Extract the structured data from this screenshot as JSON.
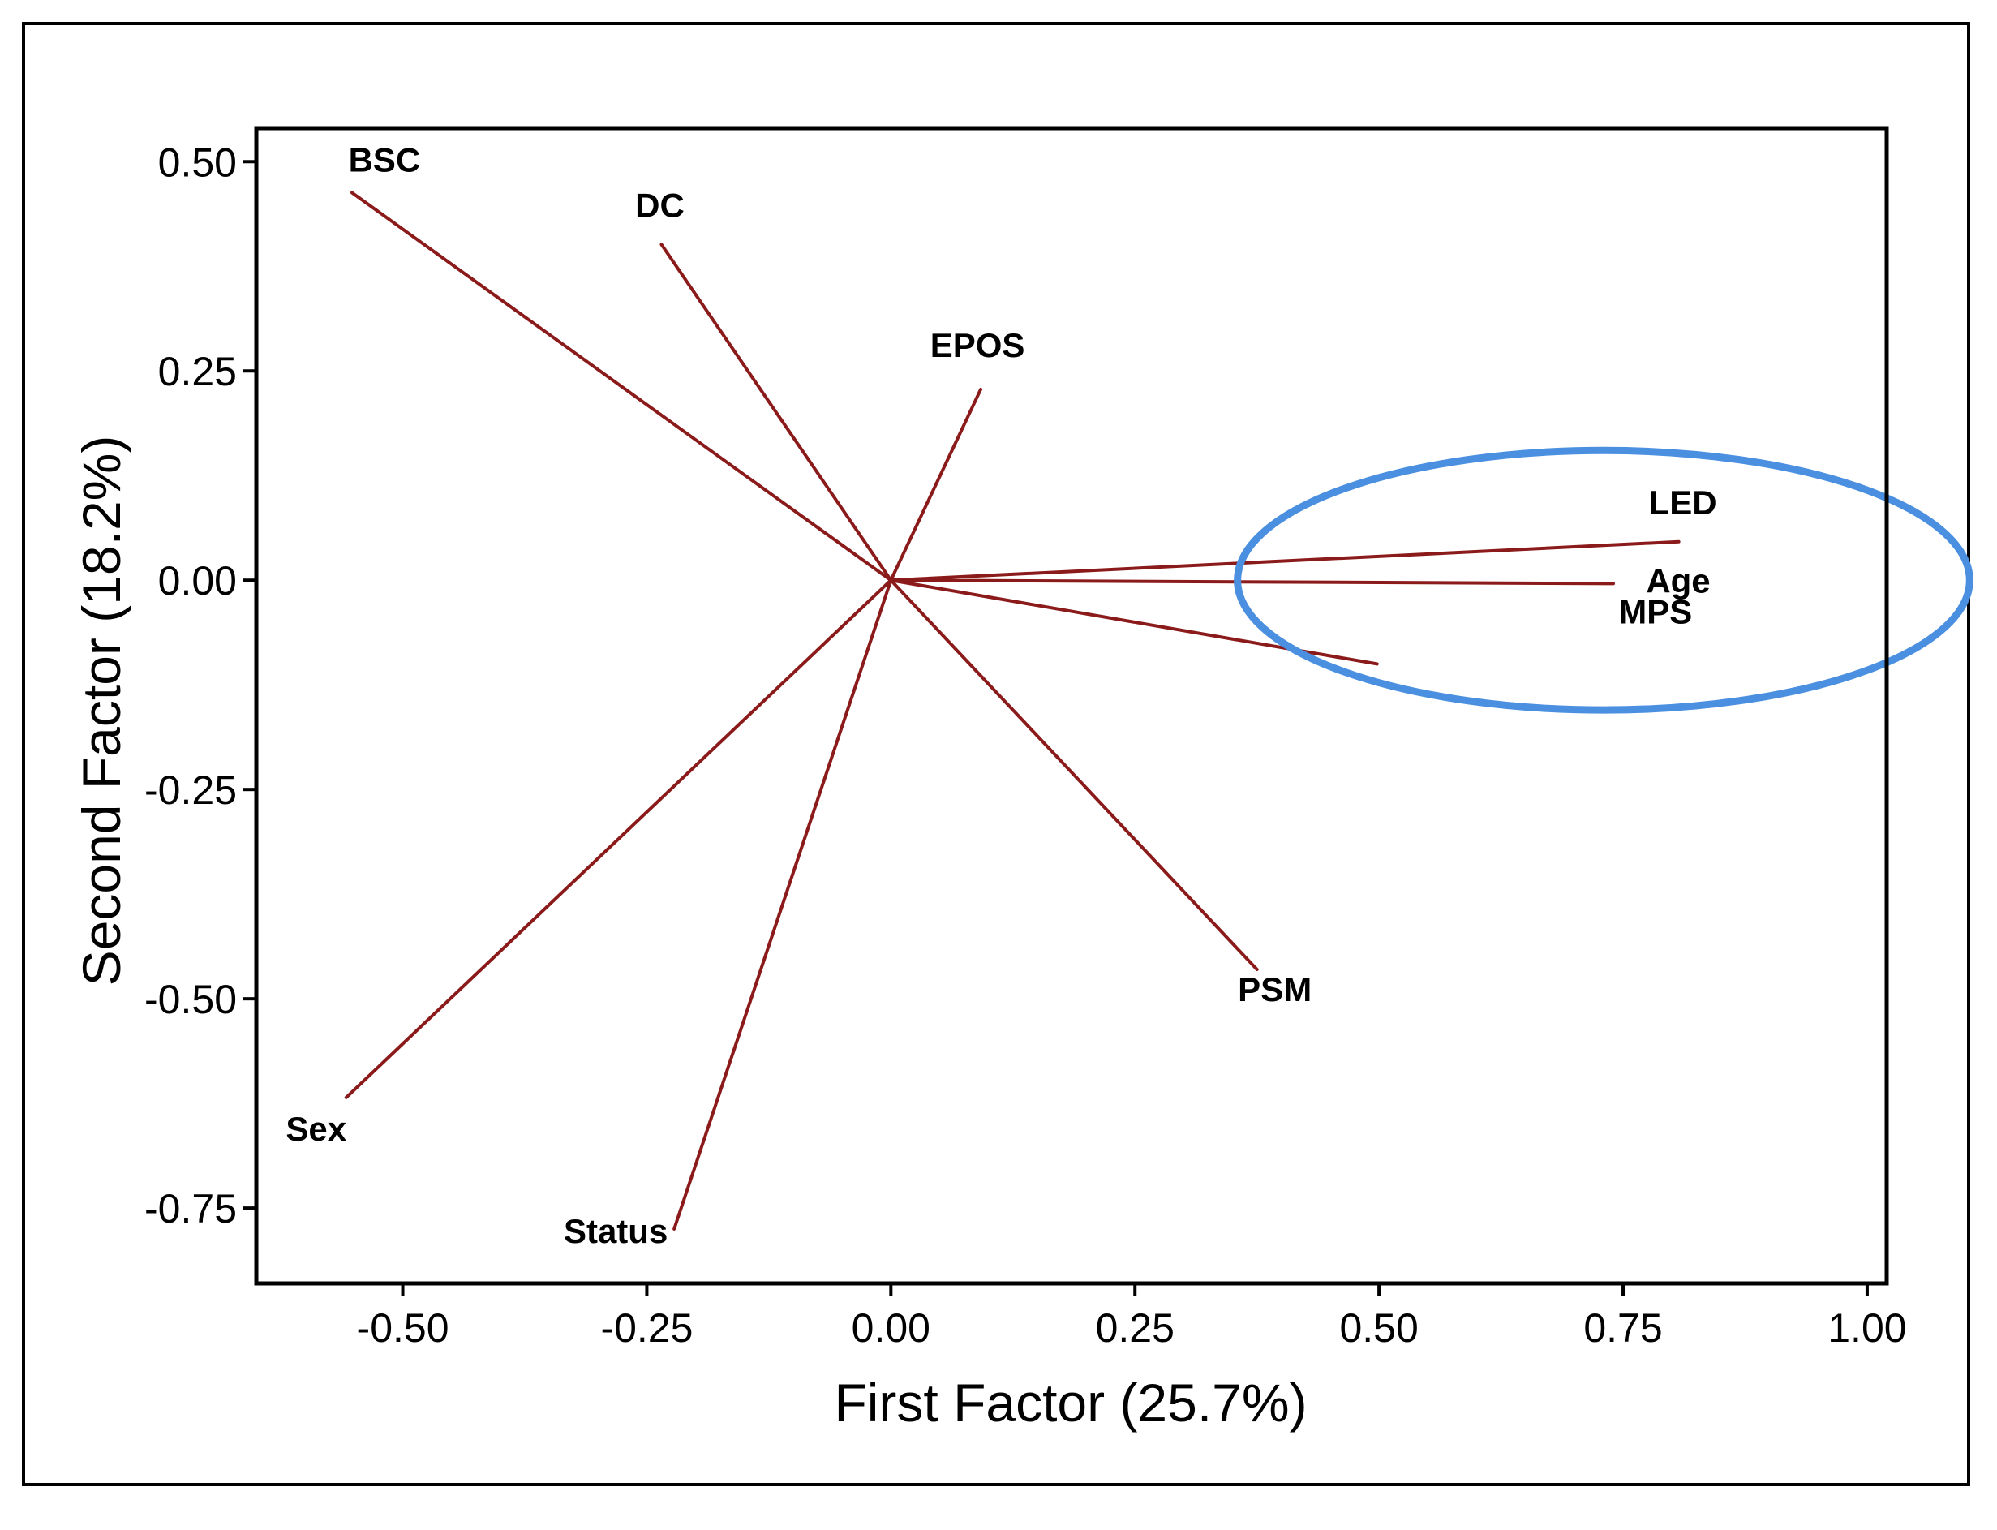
{
  "chart_data": {
    "type": "scatter",
    "subtype": "loading-plot",
    "xlabel": "First Factor (25.7%)",
    "ylabel": "Second Factor (18.2%)",
    "xlim": [
      -0.65,
      1.02
    ],
    "ylim": [
      -0.84,
      0.54
    ],
    "xticks": [
      -0.5,
      -0.25,
      0.0,
      0.25,
      0.5,
      0.75,
      1.0
    ],
    "xtick_labels": [
      "-0.50",
      "-0.25",
      "0.00",
      "0.25",
      "0.50",
      "0.75",
      "1.00"
    ],
    "yticks": [
      0.5,
      0.25,
      0.0,
      -0.25,
      -0.5,
      -0.75
    ],
    "ytick_labels": [
      "0.50",
      "0.25",
      "0.00",
      "-0.25",
      "-0.50",
      "-0.75"
    ],
    "grid": false,
    "line_color": "#8b1a1a",
    "highlight_color": "#4a8fe0",
    "vectors": [
      {
        "label": "BSC",
        "x": -0.552,
        "y": 0.463
      },
      {
        "label": "DC",
        "x": -0.235,
        "y": 0.401
      },
      {
        "label": "EPOS",
        "x": 0.092,
        "y": 0.228
      },
      {
        "label": "LED",
        "x": 0.807,
        "y": 0.046
      },
      {
        "label": "Age",
        "x": 0.74,
        "y": -0.004
      },
      {
        "label": "MPS",
        "x": 0.498,
        "y": -0.1
      },
      {
        "label": "PSM",
        "x": 0.375,
        "y": -0.465
      },
      {
        "label": "Sex",
        "x": -0.558,
        "y": -0.618
      },
      {
        "label": "Status",
        "x": -0.222,
        "y": -0.775
      }
    ],
    "highlight_ellipse": {
      "center_x": 0.73,
      "center_y": 0.0,
      "radius_x": 0.375,
      "radius_y": 0.155
    }
  }
}
